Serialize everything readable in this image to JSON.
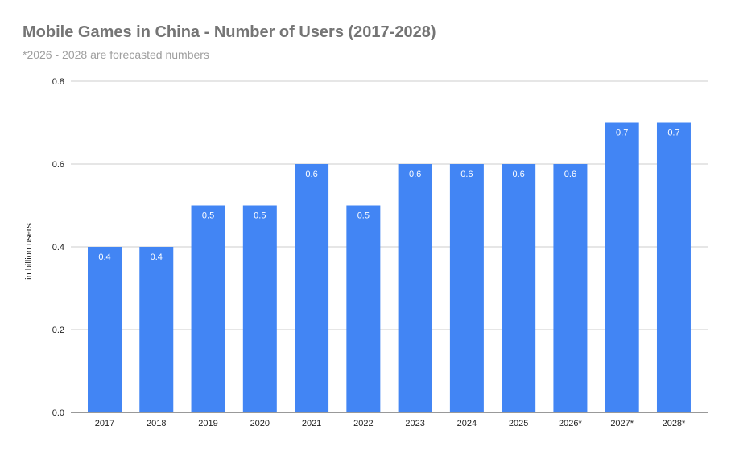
{
  "chart_data": {
    "type": "bar",
    "title": "Mobile Games in China - Number of Users (2017-2028)",
    "subtitle": "*2026 - 2028 are forecasted numbers",
    "xlabel": "",
    "ylabel": "in billion users",
    "ylim": [
      0,
      0.8
    ],
    "yticks": [
      "0.0",
      "0.2",
      "0.4",
      "0.6",
      "0.8"
    ],
    "grid": true,
    "legend": "none",
    "bar_color": "#4285f4",
    "categories": [
      "2017",
      "2018",
      "2019",
      "2020",
      "2021",
      "2022",
      "2023",
      "2024",
      "2025",
      "2026*",
      "2027*",
      "2028*"
    ],
    "values": [
      0.4,
      0.4,
      0.5,
      0.5,
      0.6,
      0.5,
      0.6,
      0.6,
      0.6,
      0.6,
      0.7,
      0.7
    ],
    "data_labels": [
      "0.4",
      "0.4",
      "0.5",
      "0.5",
      "0.6",
      "0.5",
      "0.6",
      "0.6",
      "0.6",
      "0.6",
      "0.7",
      "0.7"
    ]
  }
}
